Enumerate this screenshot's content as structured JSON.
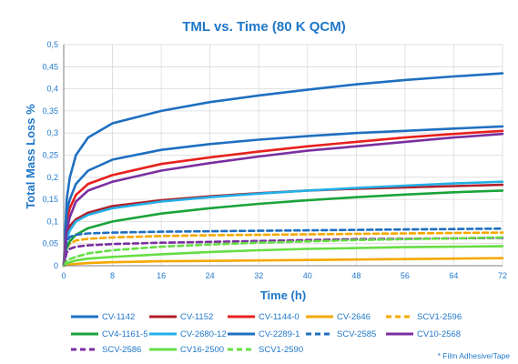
{
  "chart_data": {
    "type": "line",
    "title": "TML vs. Time (80 K QCM)",
    "xlabel": "Time (h)",
    "ylabel": "Total Mass Loss %",
    "xlim": [
      0,
      72
    ],
    "ylim": [
      0,
      0.5
    ],
    "xticks": [
      "0",
      "8",
      "16",
      "24",
      "32",
      "40",
      "48",
      "56",
      "64",
      "72"
    ],
    "yticks": [
      "0",
      "0,05",
      "0,1",
      "0,15",
      "0,2",
      "0,25",
      "0,3",
      "0,35",
      "0,4",
      "0,45",
      "0,5"
    ],
    "grid": true,
    "legend": "bottom",
    "note": "* Film Adhesive/Tape",
    "series": [
      {
        "name": "CV-1142",
        "color": "#1f6fc0",
        "dash": "solid",
        "points": [
          [
            0,
            0
          ],
          [
            0.5,
            0.15
          ],
          [
            1,
            0.2
          ],
          [
            2,
            0.25
          ],
          [
            4,
            0.29
          ],
          [
            8,
            0.322
          ],
          [
            16,
            0.35
          ],
          [
            24,
            0.37
          ],
          [
            32,
            0.385
          ],
          [
            40,
            0.398
          ],
          [
            48,
            0.41
          ],
          [
            56,
            0.42
          ],
          [
            64,
            0.428
          ],
          [
            72,
            0.435
          ]
        ]
      },
      {
        "name": "CV-1152",
        "color": "#b0202a",
        "dash": "solid",
        "points": [
          [
            0,
            0
          ],
          [
            0.5,
            0.07
          ],
          [
            1,
            0.09
          ],
          [
            2,
            0.105
          ],
          [
            4,
            0.12
          ],
          [
            8,
            0.135
          ],
          [
            16,
            0.148
          ],
          [
            24,
            0.157
          ],
          [
            32,
            0.164
          ],
          [
            40,
            0.17
          ],
          [
            48,
            0.174
          ],
          [
            56,
            0.177
          ],
          [
            64,
            0.18
          ],
          [
            72,
            0.183
          ]
        ]
      },
      {
        "name": "CV-1144-0",
        "color": "#e8201e",
        "dash": "solid",
        "points": [
          [
            0,
            0
          ],
          [
            0.5,
            0.1
          ],
          [
            1,
            0.13
          ],
          [
            2,
            0.16
          ],
          [
            4,
            0.185
          ],
          [
            8,
            0.205
          ],
          [
            16,
            0.23
          ],
          [
            24,
            0.245
          ],
          [
            32,
            0.258
          ],
          [
            40,
            0.27
          ],
          [
            48,
            0.28
          ],
          [
            56,
            0.29
          ],
          [
            64,
            0.298
          ],
          [
            72,
            0.305
          ]
        ]
      },
      {
        "name": "CV-2646",
        "color": "#f5a800",
        "dash": "solid",
        "points": [
          [
            0,
            0
          ],
          [
            1,
            0.003
          ],
          [
            4,
            0.006
          ],
          [
            8,
            0.008
          ],
          [
            16,
            0.01
          ],
          [
            24,
            0.011
          ],
          [
            32,
            0.012
          ],
          [
            40,
            0.013
          ],
          [
            48,
            0.014
          ],
          [
            56,
            0.015
          ],
          [
            64,
            0.016
          ],
          [
            72,
            0.017
          ]
        ]
      },
      {
        "name": "SCV1-2596",
        "color": "#f5a800",
        "dash": "dashed",
        "points": [
          [
            0,
            0
          ],
          [
            0.5,
            0.04
          ],
          [
            1,
            0.05
          ],
          [
            2,
            0.057
          ],
          [
            4,
            0.061
          ],
          [
            8,
            0.064
          ],
          [
            16,
            0.067
          ],
          [
            24,
            0.069
          ],
          [
            32,
            0.07
          ],
          [
            40,
            0.071
          ],
          [
            48,
            0.072
          ],
          [
            56,
            0.073
          ],
          [
            64,
            0.074
          ],
          [
            72,
            0.075
          ]
        ]
      },
      {
        "name": "CV4-1161-5",
        "color": "#1aa33a",
        "dash": "solid",
        "points": [
          [
            0,
            0
          ],
          [
            0.5,
            0.04
          ],
          [
            1,
            0.055
          ],
          [
            2,
            0.07
          ],
          [
            4,
            0.085
          ],
          [
            8,
            0.1
          ],
          [
            16,
            0.118
          ],
          [
            24,
            0.13
          ],
          [
            32,
            0.14
          ],
          [
            40,
            0.148
          ],
          [
            48,
            0.155
          ],
          [
            56,
            0.161
          ],
          [
            64,
            0.166
          ],
          [
            72,
            0.17
          ]
        ]
      },
      {
        "name": "CV-2680-12",
        "color": "#22b0e8",
        "dash": "solid",
        "points": [
          [
            0,
            0
          ],
          [
            0.5,
            0.06
          ],
          [
            1,
            0.08
          ],
          [
            2,
            0.1
          ],
          [
            4,
            0.115
          ],
          [
            8,
            0.13
          ],
          [
            16,
            0.145
          ],
          [
            24,
            0.155
          ],
          [
            32,
            0.163
          ],
          [
            40,
            0.17
          ],
          [
            48,
            0.176
          ],
          [
            56,
            0.181
          ],
          [
            64,
            0.186
          ],
          [
            72,
            0.19
          ]
        ]
      },
      {
        "name": "CV-2289-1",
        "color": "#1f6fc0",
        "dash": "solid",
        "points": [
          [
            0,
            0
          ],
          [
            0.5,
            0.12
          ],
          [
            1,
            0.15
          ],
          [
            2,
            0.185
          ],
          [
            4,
            0.215
          ],
          [
            8,
            0.24
          ],
          [
            16,
            0.262
          ],
          [
            24,
            0.275
          ],
          [
            32,
            0.285
          ],
          [
            40,
            0.293
          ],
          [
            48,
            0.3
          ],
          [
            56,
            0.305
          ],
          [
            64,
            0.31
          ],
          [
            72,
            0.315
          ]
        ]
      },
      {
        "name": "SCV-2585",
        "color": "#1f6fc0",
        "dash": "dashed",
        "points": [
          [
            0,
            0
          ],
          [
            0.5,
            0.055
          ],
          [
            1,
            0.065
          ],
          [
            2,
            0.07
          ],
          [
            4,
            0.073
          ],
          [
            8,
            0.075
          ],
          [
            16,
            0.077
          ],
          [
            24,
            0.078
          ],
          [
            32,
            0.079
          ],
          [
            40,
            0.08
          ],
          [
            48,
            0.081
          ],
          [
            56,
            0.082
          ],
          [
            64,
            0.083
          ],
          [
            72,
            0.084
          ]
        ]
      },
      {
        "name": "CV10-2568",
        "color": "#7a2fa0",
        "dash": "solid",
        "points": [
          [
            0,
            0
          ],
          [
            0.5,
            0.08
          ],
          [
            1,
            0.11
          ],
          [
            2,
            0.145
          ],
          [
            4,
            0.17
          ],
          [
            8,
            0.19
          ],
          [
            16,
            0.215
          ],
          [
            24,
            0.232
          ],
          [
            32,
            0.247
          ],
          [
            40,
            0.26
          ],
          [
            48,
            0.27
          ],
          [
            56,
            0.28
          ],
          [
            64,
            0.29
          ],
          [
            72,
            0.298
          ]
        ]
      },
      {
        "name": "SCV-2586",
        "color": "#7a2fa0",
        "dash": "dashed",
        "points": [
          [
            0,
            0
          ],
          [
            0.5,
            0.03
          ],
          [
            1,
            0.038
          ],
          [
            2,
            0.043
          ],
          [
            4,
            0.046
          ],
          [
            8,
            0.049
          ],
          [
            16,
            0.052
          ],
          [
            24,
            0.054
          ],
          [
            32,
            0.056
          ],
          [
            40,
            0.058
          ],
          [
            48,
            0.06
          ],
          [
            56,
            0.061
          ],
          [
            64,
            0.062
          ],
          [
            72,
            0.063
          ]
        ]
      },
      {
        "name": "CV16-2500",
        "color": "#66dd44",
        "dash": "solid",
        "points": [
          [
            0,
            0
          ],
          [
            0.5,
            0.005
          ],
          [
            1,
            0.008
          ],
          [
            2,
            0.012
          ],
          [
            4,
            0.016
          ],
          [
            8,
            0.02
          ],
          [
            16,
            0.026
          ],
          [
            24,
            0.031
          ],
          [
            32,
            0.035
          ],
          [
            40,
            0.038
          ],
          [
            48,
            0.04
          ],
          [
            56,
            0.042
          ],
          [
            64,
            0.043
          ],
          [
            72,
            0.044
          ]
        ]
      },
      {
        "name": "SCV1-2590",
        "color": "#66dd44",
        "dash": "dashed",
        "points": [
          [
            0,
            0
          ],
          [
            0.5,
            0.01
          ],
          [
            1,
            0.015
          ],
          [
            2,
            0.02
          ],
          [
            4,
            0.028
          ],
          [
            8,
            0.035
          ],
          [
            16,
            0.043
          ],
          [
            24,
            0.048
          ],
          [
            32,
            0.052
          ],
          [
            40,
            0.055
          ],
          [
            48,
            0.058
          ],
          [
            56,
            0.06
          ],
          [
            64,
            0.062
          ],
          [
            72,
            0.064
          ]
        ]
      }
    ]
  }
}
